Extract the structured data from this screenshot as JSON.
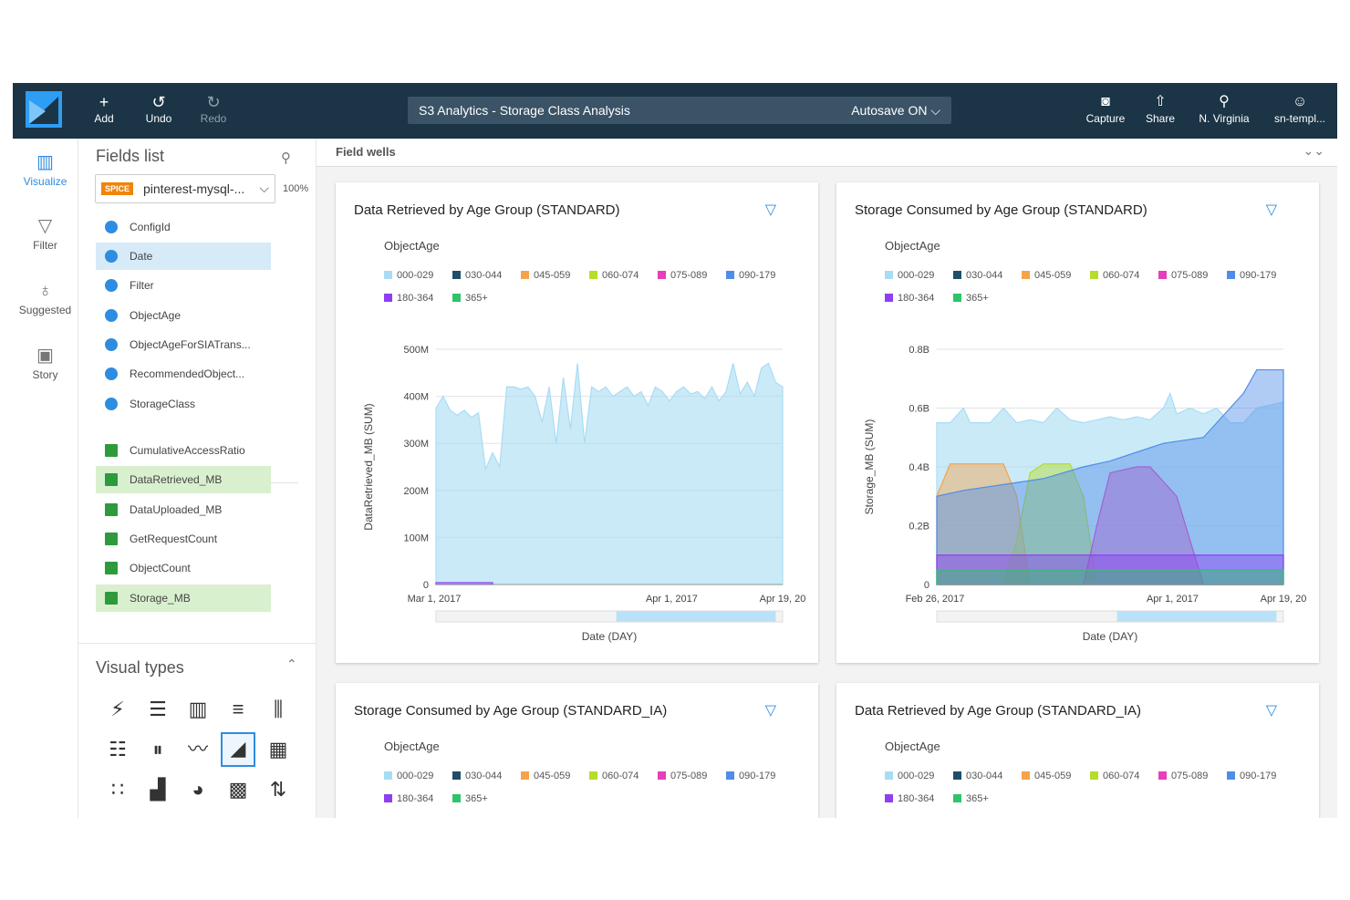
{
  "topbar": {
    "add": "Add",
    "undo": "Undo",
    "redo": "Redo",
    "analysis_title": "S3 Analytics - Storage Class Analysis",
    "autosave": "Autosave ON",
    "capture": "Capture",
    "share": "Share",
    "region": "N. Virginia",
    "user": "sn-templ..."
  },
  "rail": {
    "visualize": "Visualize",
    "filter": "Filter",
    "suggested": "Suggested",
    "story": "Story"
  },
  "fields_panel": {
    "title": "Fields list",
    "spice": "SPICE",
    "dataset": "pinterest-mysql-...",
    "spice_usage": "100%",
    "dimensions": [
      "ConfigId",
      "Date",
      "Filter",
      "ObjectAge",
      "ObjectAgeForSIATrans...",
      "RecommendedObject...",
      "StorageClass"
    ],
    "measures": [
      "CumulativeAccessRatio",
      "DataRetrieved_MB",
      "DataUploaded_MB",
      "GetRequestCount",
      "ObjectCount",
      "Storage_MB"
    ]
  },
  "visual_types": {
    "title": "Visual types"
  },
  "field_wells": "Field wells",
  "legend": {
    "title": "ObjectAge",
    "items": [
      {
        "label": "000-029",
        "color": "#a8dcf4"
      },
      {
        "label": "030-044",
        "color": "#1f4e6b"
      },
      {
        "label": "045-059",
        "color": "#f5a34b"
      },
      {
        "label": "060-074",
        "color": "#b5dd2a"
      },
      {
        "label": "075-089",
        "color": "#e53fb9"
      },
      {
        "label": "090-179",
        "color": "#4f8de8"
      },
      {
        "label": "180-364",
        "color": "#8f3ff2"
      },
      {
        "label": "365+",
        "color": "#2ec46a"
      }
    ]
  },
  "cards": [
    {
      "title": "Data Retrieved by Age Group (STANDARD)"
    },
    {
      "title": "Storage Consumed by Age Group (STANDARD)"
    },
    {
      "title": "Storage Consumed by Age Group (STANDARD_IA)"
    },
    {
      "title": "Data Retrieved by Age Group (STANDARD_IA)"
    }
  ],
  "chart_data": [
    {
      "type": "area",
      "title": "Data Retrieved by Age Group (STANDARD)",
      "xlabel": "Date (DAY)",
      "ylabel": "DataRetrieved_MB (SUM)",
      "legend_title": "ObjectAge",
      "xticks": [
        "Mar 1, 2017",
        "Apr 1, 2017",
        "Apr 19, 20"
      ],
      "yticks": [
        "0",
        "100M",
        "200M",
        "300M",
        "400M",
        "500M"
      ],
      "ylim": [
        0,
        500
      ],
      "yunit": "M",
      "x_day_range": [
        0,
        49
      ],
      "series": [
        {
          "name": "000-029",
          "x": [
            0,
            1,
            2,
            3,
            4,
            5,
            6,
            7,
            8,
            9,
            10,
            11,
            12,
            13,
            14,
            15,
            16,
            17,
            18,
            19,
            20,
            21,
            22,
            23,
            24,
            25,
            26,
            27,
            28,
            29,
            30,
            31,
            32,
            33,
            34,
            35,
            36,
            37,
            38,
            39,
            40,
            41,
            42,
            43,
            44,
            45,
            46,
            47,
            48,
            49
          ],
          "y": [
            375,
            400,
            370,
            360,
            370,
            355,
            365,
            245,
            280,
            250,
            420,
            420,
            415,
            420,
            400,
            345,
            420,
            300,
            440,
            330,
            470,
            300,
            420,
            410,
            420,
            400,
            410,
            420,
            400,
            410,
            380,
            420,
            410,
            390,
            410,
            420,
            405,
            410,
            395,
            420,
            390,
            410,
            470,
            405,
            430,
            400,
            460,
            470,
            430,
            420
          ]
        },
        {
          "name": "180-364",
          "x": [
            0,
            1,
            2,
            3,
            4,
            5,
            6,
            7,
            8
          ],
          "y": [
            4,
            4,
            4,
            4,
            4,
            4,
            4,
            4,
            4
          ]
        }
      ]
    },
    {
      "type": "area",
      "title": "Storage Consumed by Age Group (STANDARD)",
      "xlabel": "Date (DAY)",
      "ylabel": "Storage_MB (SUM)",
      "legend_title": "ObjectAge",
      "xticks": [
        "Feb 26, 2017",
        "Apr 1, 2017",
        "Apr 19, 20"
      ],
      "yticks": [
        "0",
        "0.2B",
        "0.4B",
        "0.6B",
        "0.8B"
      ],
      "ylim": [
        0,
        0.8
      ],
      "yunit": "B",
      "x_day_range": [
        0,
        52
      ],
      "series": [
        {
          "name": "000-029",
          "x": [
            0,
            2,
            4,
            5,
            6,
            8,
            10,
            12,
            14,
            16,
            18,
            20,
            22,
            24,
            26,
            28,
            30,
            32,
            34,
            35,
            36,
            38,
            40,
            42,
            44,
            46,
            48,
            50,
            52
          ],
          "y": [
            0.55,
            0.55,
            0.6,
            0.55,
            0.55,
            0.55,
            0.6,
            0.55,
            0.56,
            0.55,
            0.6,
            0.56,
            0.55,
            0.56,
            0.57,
            0.56,
            0.57,
            0.56,
            0.6,
            0.65,
            0.58,
            0.6,
            0.58,
            0.6,
            0.55,
            0.55,
            0.6,
            0.61,
            0.62
          ]
        },
        {
          "name": "045-059",
          "x": [
            0,
            2,
            10,
            12,
            14,
            20,
            24,
            52
          ],
          "y": [
            0.3,
            0.41,
            0.41,
            0.3,
            0.0,
            0.0,
            0.0,
            0.0
          ]
        },
        {
          "name": "060-074",
          "x": [
            0,
            10,
            12,
            14,
            16,
            20,
            22,
            24,
            52
          ],
          "y": [
            0.0,
            0.0,
            0.15,
            0.38,
            0.41,
            0.41,
            0.3,
            0.0,
            0.0
          ]
        },
        {
          "name": "075-089",
          "x": [
            0,
            22,
            24,
            26,
            30,
            32,
            36,
            40,
            52
          ],
          "y": [
            0.0,
            0.0,
            0.2,
            0.38,
            0.4,
            0.4,
            0.3,
            0.0,
            0.0
          ]
        },
        {
          "name": "090-179",
          "x": [
            0,
            4,
            10,
            16,
            22,
            26,
            30,
            34,
            40,
            42,
            46,
            48,
            52
          ],
          "y": [
            0.3,
            0.32,
            0.34,
            0.36,
            0.4,
            0.42,
            0.45,
            0.48,
            0.5,
            0.55,
            0.65,
            0.73,
            0.73
          ]
        },
        {
          "name": "180-364",
          "x": [
            0,
            52
          ],
          "y": [
            0.1,
            0.1
          ]
        },
        {
          "name": "365+",
          "x": [
            0,
            52
          ],
          "y": [
            0.05,
            0.05
          ]
        }
      ]
    }
  ]
}
